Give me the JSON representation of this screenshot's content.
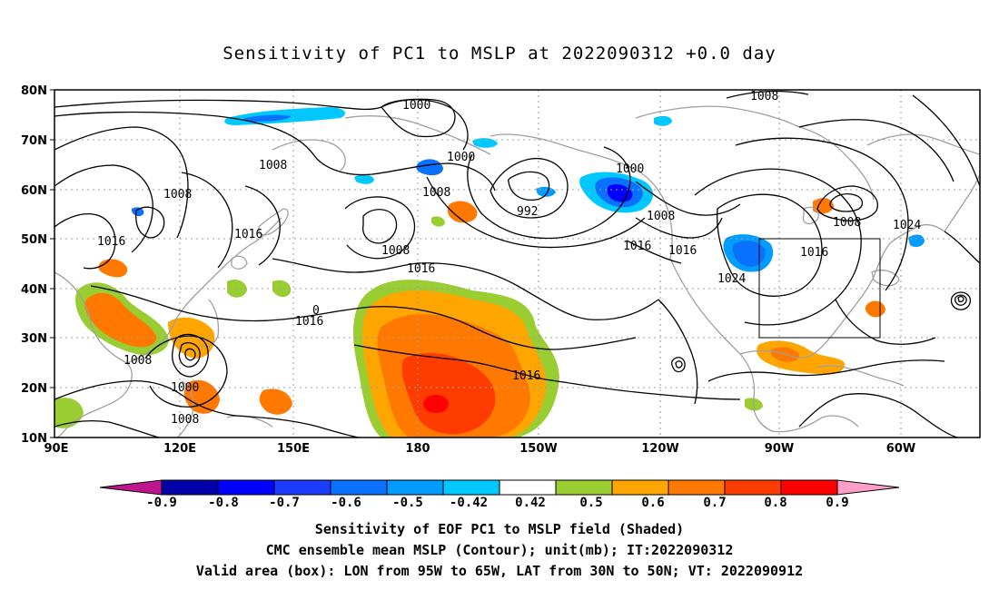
{
  "title": "Sensitivity of PC1 to MSLP at 2022090312 +0.0 day",
  "lat_labels": [
    "80N",
    "70N",
    "60N",
    "50N",
    "40N",
    "30N",
    "20N",
    "10N"
  ],
  "lon_labels": [
    "90E",
    "120E",
    "150E",
    "180",
    "150W",
    "120W",
    "90W",
    "60W"
  ],
  "colorbar": {
    "labels": [
      "-0.9",
      "-0.8",
      "-0.7",
      "-0.6",
      "-0.5",
      "-0.42",
      "0.42",
      "0.5",
      "0.6",
      "0.7",
      "0.8",
      "0.9"
    ],
    "colors": [
      "#c0168d",
      "#0000a8",
      "#0000ff",
      "#1c3cff",
      "#0a70ff",
      "#009cff",
      "#00c8ff",
      "#ffffff",
      "#9acd32",
      "#ffa500",
      "#ff7800",
      "#ff3c00",
      "#ff0000",
      "#ff9ec8"
    ]
  },
  "contour_labels": [
    "1000",
    "1008",
    "1000",
    "1000",
    "1008",
    "1008",
    "992",
    "1008",
    "1008",
    "1016",
    "1016",
    "1016",
    "1016",
    "1024",
    "1016",
    "1008",
    "1024",
    "1016",
    "1008",
    "1000",
    "1008",
    "0",
    "1016",
    "1008",
    "1016"
  ],
  "box": {
    "lon_from": "95W",
    "lon_to": "65W",
    "lat_from": "30N",
    "lat_to": "50N"
  },
  "caption": {
    "line1": "Sensitivity of EOF PC1 to MSLP field (Shaded)",
    "line2": "CMC ensemble mean MSLP (Contour); unit(mb); IT:2022090312",
    "line3": "Valid area (box): LON from 95W to 65W, LAT from 30N to 50N; VT: 2022090912"
  },
  "colors": {
    "contour": "#000000",
    "coast": "#a0a0a0",
    "grid": "#a0a0a0",
    "box": "#000000"
  }
}
